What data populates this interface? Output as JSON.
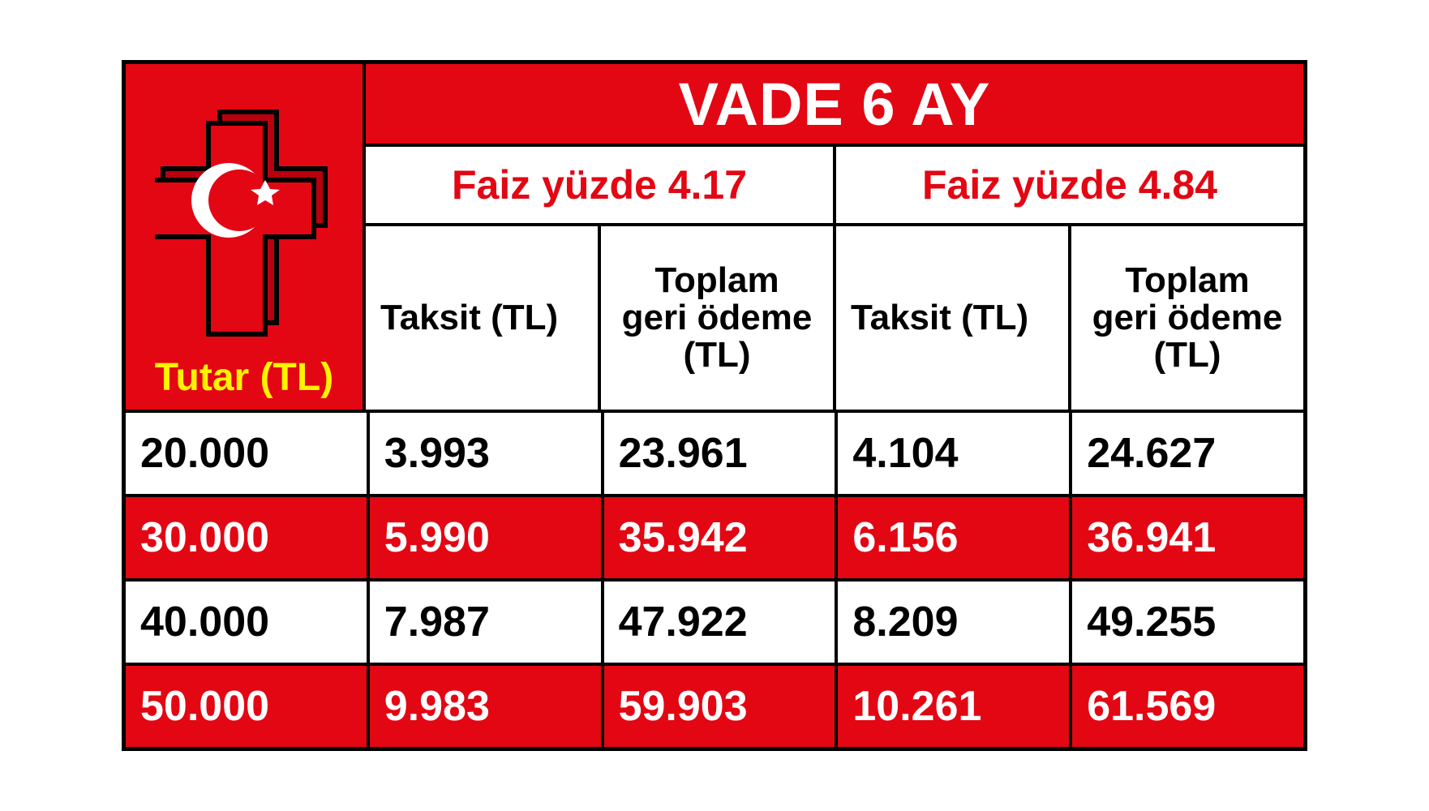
{
  "colors": {
    "red": "#e30613",
    "black": "#000000",
    "white": "#ffffff",
    "yellow": "#fff200"
  },
  "title": "VADE 6 AY",
  "amount_header": "Tutar (TL)",
  "rates": [
    {
      "label": "Faiz yüzde 4.17"
    },
    {
      "label": "Faiz yüzde 4.84"
    }
  ],
  "column_headers": {
    "taksit": "Taksit (TL)",
    "toplam": "Toplam\ngeri ödeme\n(TL)"
  },
  "rows": [
    {
      "amount": "20.000",
      "r1_taksit": "3.993",
      "r1_toplam": "23.961",
      "r2_taksit": "4.104",
      "r2_toplam": "24.627",
      "band": "white"
    },
    {
      "amount": "30.000",
      "r1_taksit": "5.990",
      "r1_toplam": "35.942",
      "r2_taksit": "6.156",
      "r2_toplam": "36.941",
      "band": "red"
    },
    {
      "amount": "40.000",
      "r1_taksit": "7.987",
      "r1_toplam": "47.922",
      "r2_taksit": "8.209",
      "r2_toplam": "49.255",
      "band": "white"
    },
    {
      "amount": "50.000",
      "r1_taksit": "9.983",
      "r1_toplam": "59.903",
      "r2_taksit": "10.261",
      "r2_toplam": "61.569",
      "band": "red"
    }
  ],
  "table": {
    "border_color": "#000000",
    "font_family": "Arial Black, Arial, sans-serif",
    "title_fontsize": 74,
    "rate_fontsize": 50,
    "header_fontsize": 44,
    "amount_header_fontsize": 48,
    "data_fontsize": 52
  }
}
